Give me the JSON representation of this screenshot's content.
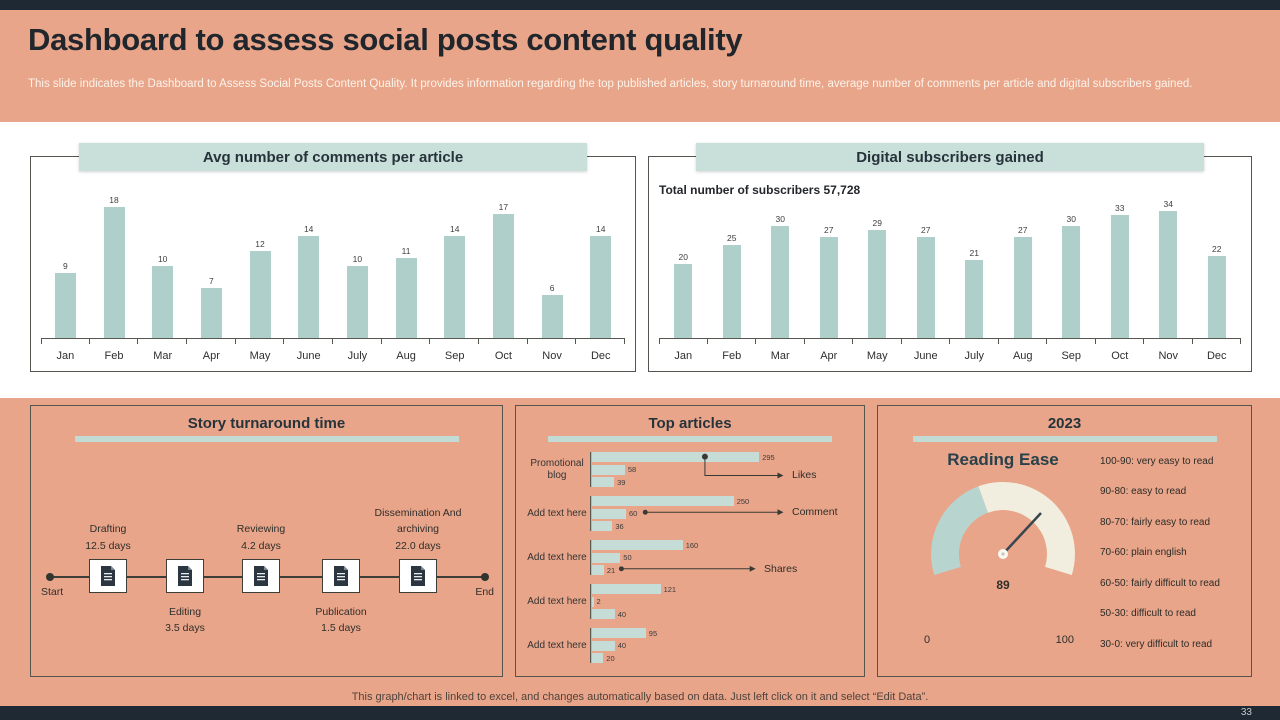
{
  "slide": {
    "title": "Dashboard to assess social posts content quality",
    "subtitle": "This slide indicates the Dashboard to Assess Social Posts Content Quality. It provides information regarding the top published articles, story turnaround time, average number of comments per article and digital subscribers gained.",
    "footer_note": "This graph/chart is linked to excel, and changes automatically based on data. Just left click on it and select “Edit Data”.",
    "page_number": "33"
  },
  "chart_data": [
    {
      "type": "bar",
      "title": "Avg number of comments per article",
      "categories": [
        "Jan",
        "Feb",
        "Mar",
        "Apr",
        "May",
        "June",
        "July",
        "Aug",
        "Sep",
        "Oct",
        "Nov",
        "Dec"
      ],
      "values": [
        9,
        18,
        10,
        7,
        12,
        14,
        10,
        11,
        14,
        17,
        6,
        14
      ],
      "ylim": [
        0,
        20
      ],
      "bar_color": "#AFD0CA",
      "legend_position": "none",
      "grid": false
    },
    {
      "type": "bar",
      "title": "Digital subscribers gained",
      "note_label": "Total number of subscribers",
      "note_value": "57,728",
      "categories": [
        "Jan",
        "Feb",
        "Mar",
        "Apr",
        "May",
        "June",
        "July",
        "Aug",
        "Sep",
        "Oct",
        "Nov",
        "Dec"
      ],
      "values": [
        20,
        25,
        30,
        27,
        29,
        27,
        21,
        27,
        30,
        33,
        34,
        22
      ],
      "ylim": [
        0,
        40
      ],
      "bar_color": "#AFD0CA",
      "legend_position": "none",
      "grid": false
    },
    {
      "type": "bar",
      "orientation": "horizontal",
      "title": "Top articles",
      "categories": [
        "Promotional blog",
        "Add text here",
        "Add text here",
        "Add text here",
        "Add text here"
      ],
      "series": [
        {
          "name": "Likes",
          "values": [
            295,
            250,
            160,
            121,
            95
          ]
        },
        {
          "name": "Comment",
          "values": [
            58,
            60,
            50,
            2,
            40
          ]
        },
        {
          "name": "Shares",
          "values": [
            39,
            36,
            21,
            40,
            20
          ]
        }
      ],
      "xlim": [
        0,
        300
      ],
      "bar_color": "#C6DDD7",
      "legend_position": "right-callouts",
      "grid": false
    },
    {
      "type": "gauge",
      "panel_title": "2023",
      "title": "Reading Ease",
      "value": "89",
      "min_label": "0",
      "max_label": "100",
      "gauge_teal": "#B7D4CE",
      "gauge_cream": "#F1EEE0",
      "legend": [
        "100-90: very easy to read",
        "90-80: easy to read",
        "80-70: fairly easy to read",
        "70-60: plain english",
        "60-50: fairly difficult to read",
        "50-30: difficult to read",
        "30-0: very difficult to read"
      ]
    }
  ],
  "timeline": {
    "title": "Story turnaround time",
    "start_label": "Start",
    "end_label": "End",
    "steps": [
      {
        "label": "Drafting",
        "duration": "12.5 days",
        "side": "top",
        "icon": "document-icon"
      },
      {
        "label": "Editing",
        "duration": "3.5 days",
        "side": "bottom",
        "icon": "document-icon"
      },
      {
        "label": "Reviewing",
        "duration": "4.2 days",
        "side": "top",
        "icon": "document-icon"
      },
      {
        "label": "Publication",
        "duration": "1.5 days",
        "side": "bottom",
        "icon": "document-icon"
      },
      {
        "label": "Dissemination And archiving",
        "duration": "22.0 days",
        "side": "top",
        "icon": "document-icon"
      }
    ]
  },
  "colors": {
    "background": "#E9A58A",
    "band": "#FFFFFF",
    "dark_bar": "#1F2933",
    "ribbon": "#C9DFD9",
    "bar_teal": "#AFD0CA",
    "gauge_cream": "#F1EEE0",
    "gauge_teal": "#B7D4CE"
  }
}
